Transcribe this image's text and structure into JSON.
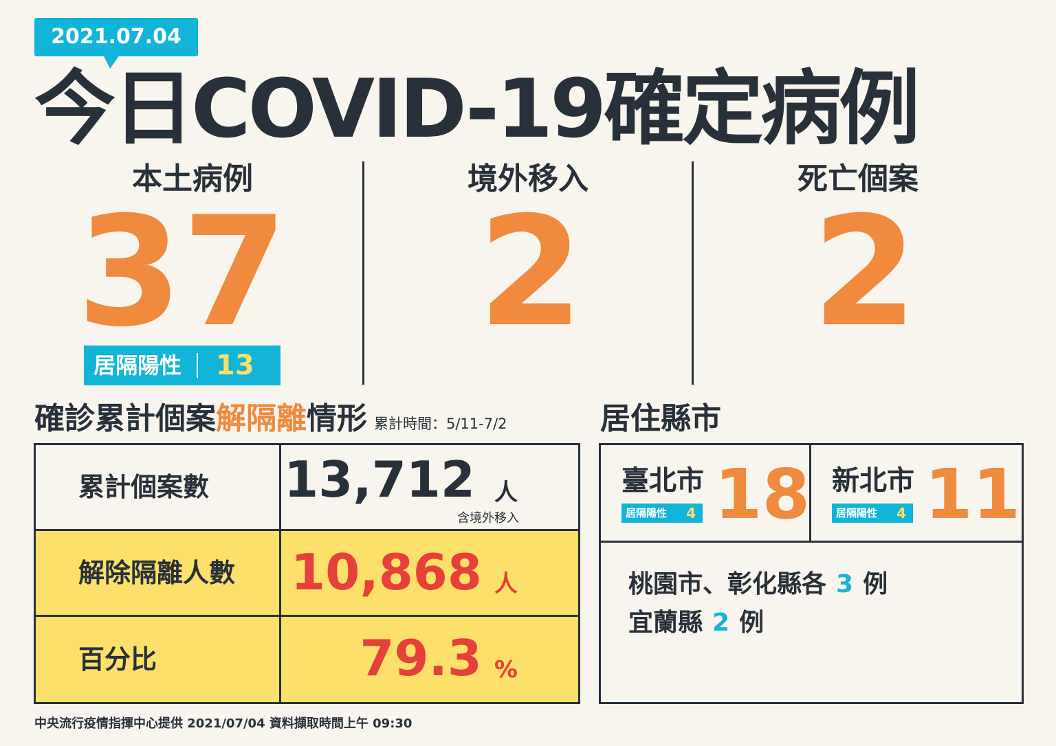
{
  "date": "2021.07.04",
  "title": "今日COVID-19確定病例",
  "stats": [
    {
      "label": "本土病例",
      "value": "37"
    },
    {
      "label": "境外移入",
      "value": "2"
    },
    {
      "label": "死亡個案",
      "value": "2"
    }
  ],
  "quarantine_badge": {
    "label": "居隔陽性",
    "value": "13"
  },
  "recovery": {
    "title_a": "確診累計個案",
    "title_hl": "解隔離",
    "title_b": "情形",
    "period": "累計時間：5/11-7/2",
    "rows": [
      {
        "label": "累計個案數",
        "value": "13,712",
        "unit": "人",
        "note": "含境外移入"
      },
      {
        "label": "解除隔離人數",
        "value": "10,868",
        "unit": "人"
      },
      {
        "label": "百分比",
        "value": "79.3",
        "unit": "%"
      }
    ]
  },
  "residence": {
    "title": "居住縣市",
    "cities": [
      {
        "name": "臺北市",
        "value": "18",
        "q_label": "居隔陽性",
        "q_value": "4"
      },
      {
        "name": "新北市",
        "value": "11",
        "q_label": "居隔陽性",
        "q_value": "4"
      }
    ],
    "others": [
      {
        "text": "桃園市、彰化縣各",
        "count": "3",
        "suffix": "例"
      },
      {
        "text": "宜蘭縣",
        "count": "2",
        "suffix": "例"
      }
    ]
  },
  "footer": "中央流行疫情指揮中心提供 2021/07/04 資料擷取時間上午 09:30",
  "colors": {
    "background": "#f8f5ee",
    "dark": "#283039",
    "orange": "#ef8a3f",
    "blue": "#12b4d8",
    "yellow": "#fde06a",
    "red": "#e5403a"
  }
}
